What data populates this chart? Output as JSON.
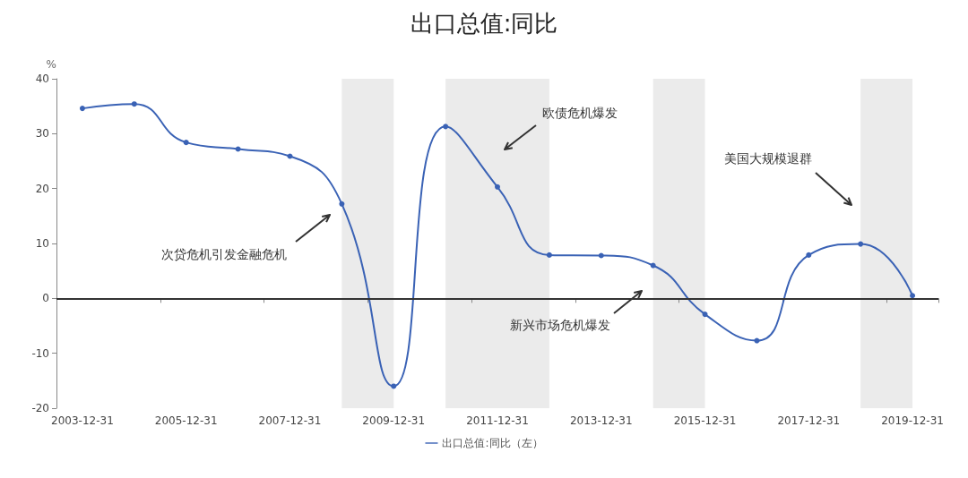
{
  "chart_data": {
    "type": "line",
    "title": "出口总值:同比",
    "ylabel": "%",
    "categories": [
      "2003-12-31",
      null,
      "2005-12-31",
      null,
      "2007-12-31",
      null,
      "2009-12-31",
      null,
      "2011-12-31",
      null,
      "2013-12-31",
      null,
      "2015-12-31",
      null,
      "2017-12-31",
      null,
      "2019-12-31"
    ],
    "series": [
      {
        "name": "出口总值:同比（左）",
        "color": "#3a62b5",
        "values": [
          34.6,
          35.4,
          28.4,
          27.2,
          25.9,
          17.2,
          -16.0,
          31.3,
          20.3,
          7.9,
          7.8,
          6.0,
          -2.9,
          -7.7,
          7.9,
          9.9,
          0.5
        ]
      }
    ],
    "ylim": [
      -20,
      40
    ],
    "yticks": [
      -20,
      -10,
      0,
      10,
      20,
      30,
      40
    ],
    "ref_lines": [
      {
        "axis": "y",
        "value": 0,
        "color": "#333333"
      }
    ],
    "annotations": [
      "次贷危机引发金融危机",
      "欧债危机爆发",
      "新兴市场危机爆发",
      "美国大规模退群"
    ],
    "legend": "bottom",
    "marker": "circle",
    "line_style": "solid"
  }
}
